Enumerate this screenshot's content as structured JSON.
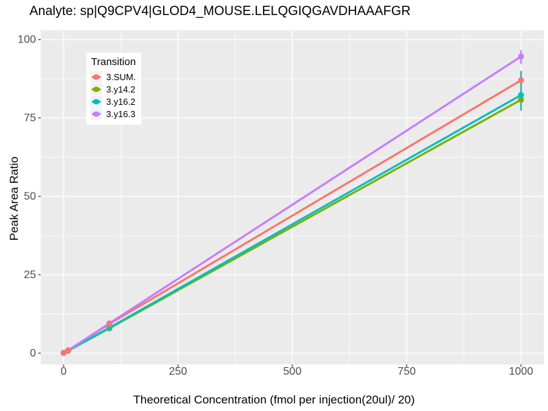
{
  "chart_data": {
    "type": "line",
    "title": "Analyte: sp|Q9CPV4|GLOD4_MOUSE.LELQGIQGAVDHAAAFGR",
    "xlabel": "Theoretical Concentration (fmol per injection(20ul)/ 20)",
    "ylabel": "Peak Area Ratio",
    "legend_title": "Transition",
    "legend_position": "inside top-left",
    "grid": true,
    "panel_bg": "#EBEBEB",
    "grid_color": "#FFFFFF",
    "legend_key_bg": "#F2F2F2",
    "tick_mark_color": "#333333",
    "tick_label_color": "#4D4D4D",
    "xlim": [
      -50,
      1050
    ],
    "ylim": [
      -3.6,
      103
    ],
    "x_ticks": [
      "0",
      "250",
      "500",
      "750",
      "1000"
    ],
    "x_tick_values": [
      0,
      250,
      500,
      750,
      1000
    ],
    "y_ticks": [
      "0",
      "25",
      "50",
      "75",
      "100"
    ],
    "y_tick_values": [
      0,
      25,
      50,
      75,
      100
    ],
    "x_minor_values": [
      125,
      375,
      625,
      875
    ],
    "y_minor_values": [
      12.5,
      37.5,
      62.5,
      87.5
    ],
    "x": [
      0,
      10,
      100,
      1000
    ],
    "series": [
      {
        "name": "3.SUM.",
        "color": "#F8766D",
        "values": [
          0.1,
          0.9,
          9.3,
          87.0
        ]
      },
      {
        "name": "3.y14.2",
        "color": "#7CAE00",
        "values": [
          0.1,
          0.8,
          7.9,
          80.8
        ]
      },
      {
        "name": "3.y16.2",
        "color": "#00BFC4",
        "values": [
          0.1,
          0.8,
          8.1,
          82.3
        ],
        "errorbar": {
          "x": 1000,
          "low": 77.3,
          "high": 90.0
        }
      },
      {
        "name": "3.y16.3",
        "color": "#C77CFF",
        "values": [
          0.1,
          0.9,
          9.5,
          94.6
        ],
        "errorbar": {
          "x": 1000,
          "low": 92.2,
          "high": 96.6
        }
      }
    ]
  }
}
